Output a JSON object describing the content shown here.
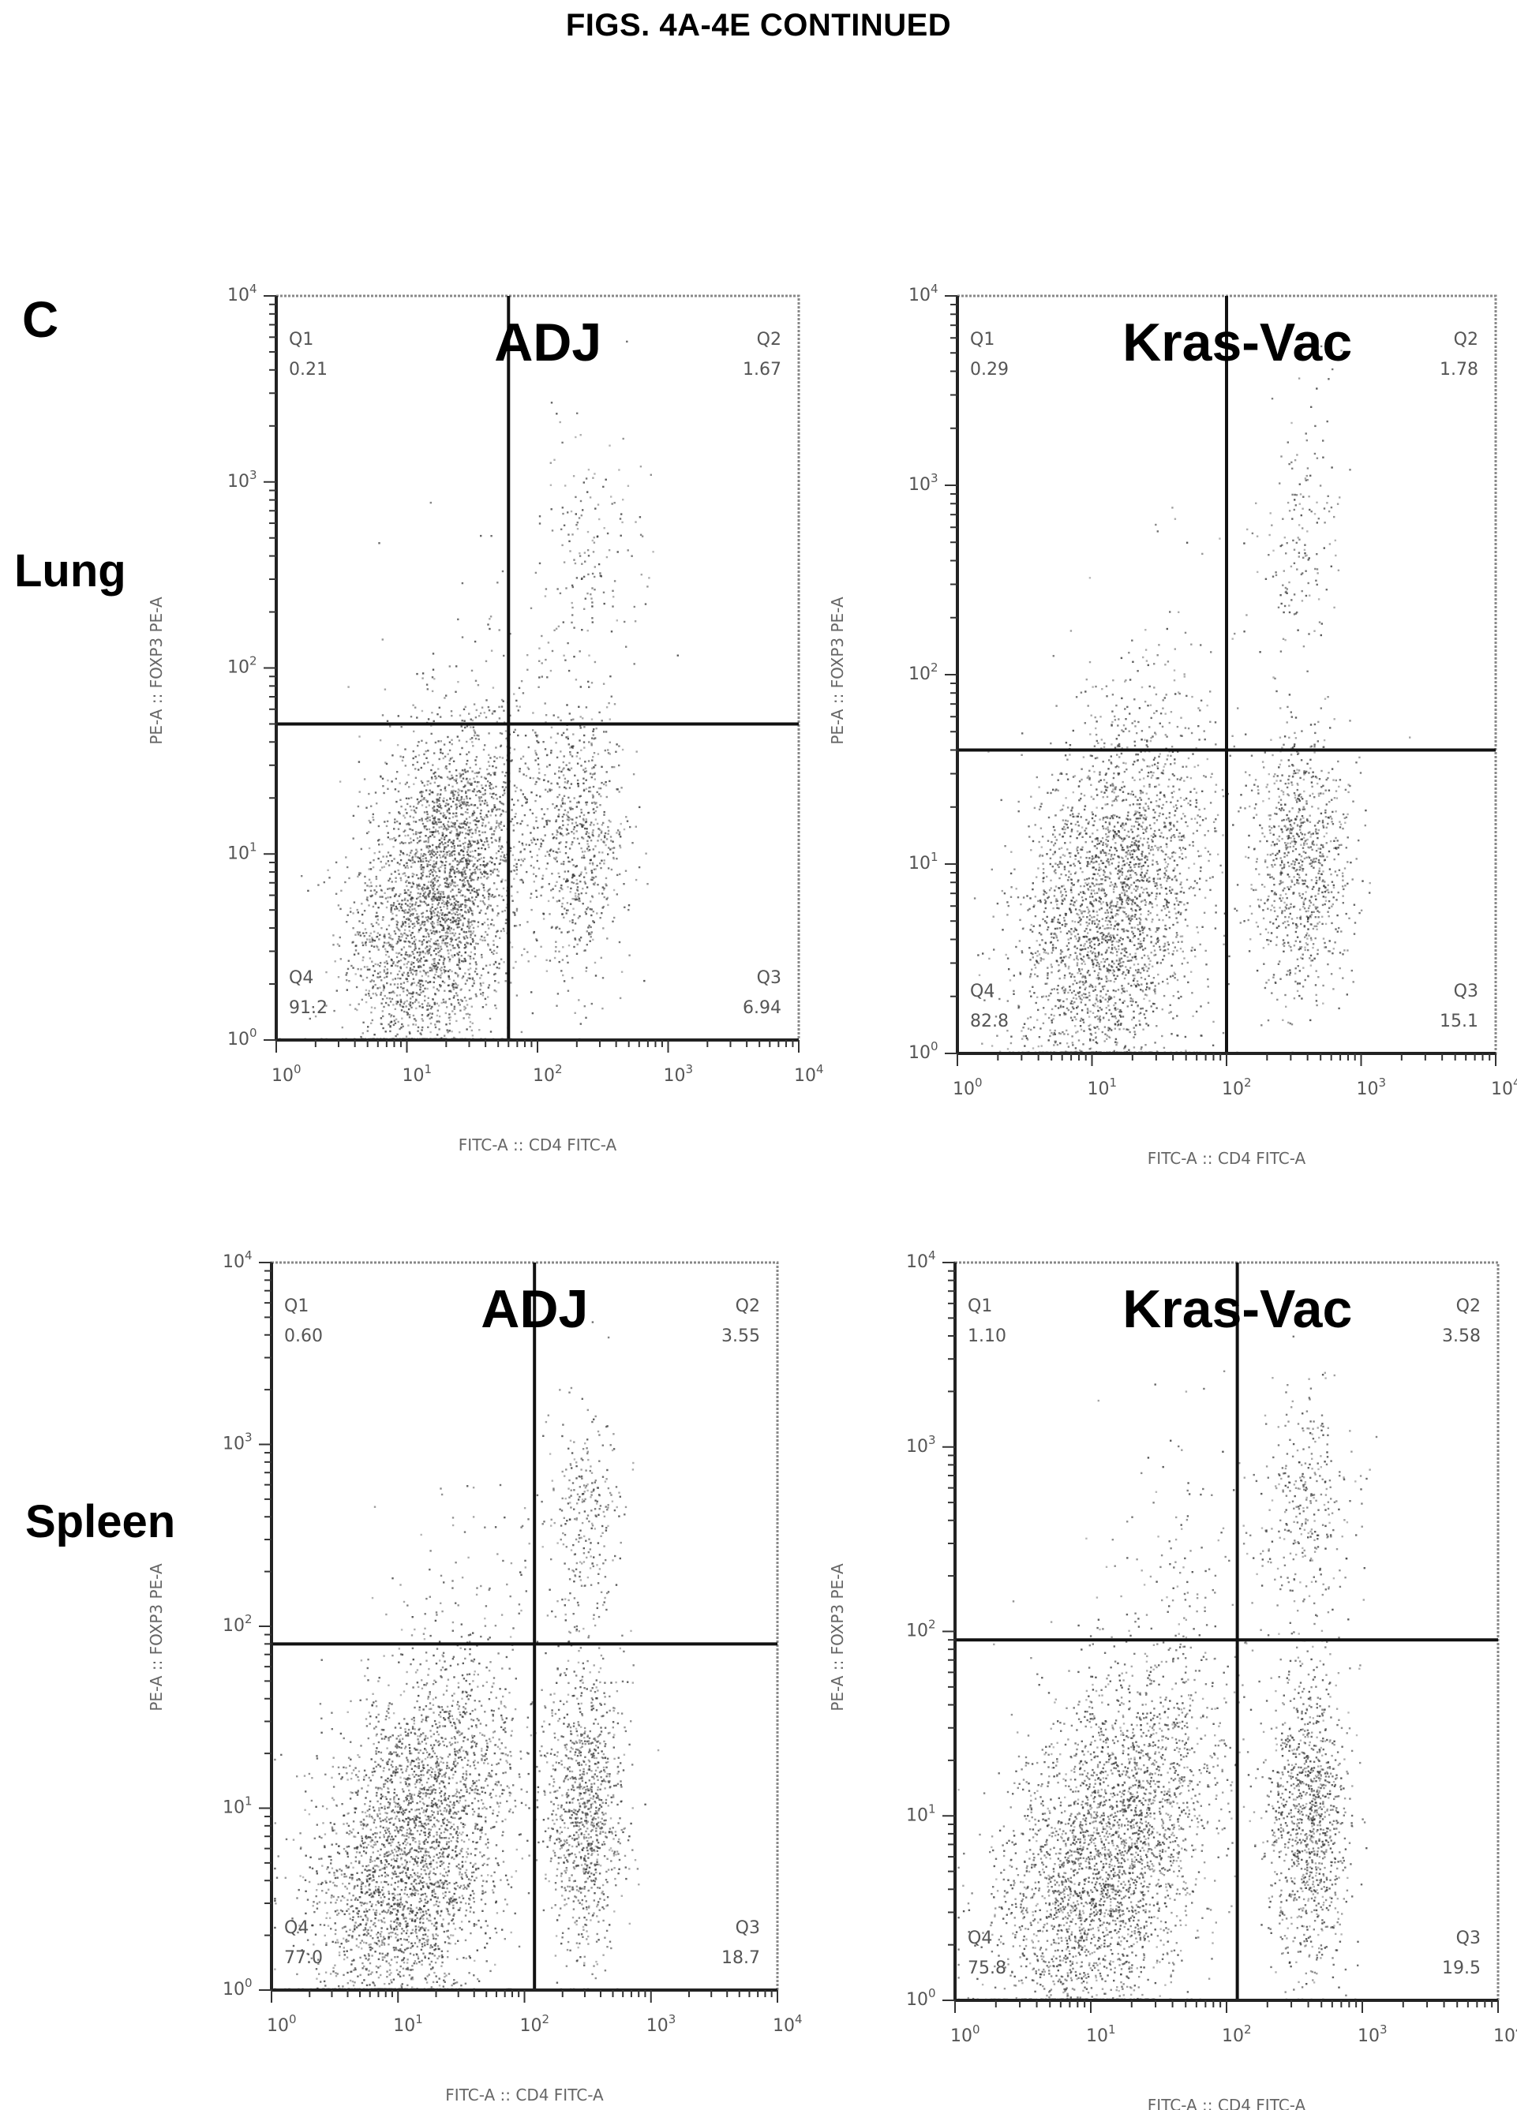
{
  "figure": {
    "title": "FIGS. 4A-4E CONTINUED",
    "panel_letter": "C",
    "rows": [
      {
        "label": "Lung"
      },
      {
        "label": "Spleen"
      }
    ]
  },
  "chart_data": [
    {
      "type": "scatter",
      "row": "Lung",
      "title": "ADJ",
      "xlabel": "FITC-A :: CD4 FITC-A",
      "ylabel": "PE-A :: FOXP3 PE-A",
      "x_scale": "log",
      "y_scale": "log",
      "xlim": [
        1,
        10000
      ],
      "ylim": [
        1,
        10000
      ],
      "x_ticks": [
        "10^0",
        "10^1",
        "10^2",
        "10^3",
        "10^4"
      ],
      "y_ticks": [
        "10^0",
        "10^1",
        "10^2",
        "10^3",
        "10^4"
      ],
      "gate": {
        "x": 60,
        "y": 50
      },
      "quadrants": [
        {
          "name": "Q1",
          "value": "0.21",
          "position": "top-left"
        },
        {
          "name": "Q2",
          "value": "1.67",
          "position": "top-right"
        },
        {
          "name": "Q3",
          "value": "6.94",
          "position": "bottom-right"
        },
        {
          "name": "Q4",
          "value": "91.2",
          "position": "bottom-left"
        }
      ],
      "populations": [
        {
          "x": 20,
          "y": 8,
          "sx": 0.32,
          "sy": 0.42,
          "count": 2600
        },
        {
          "x": 12,
          "y": 2.5,
          "sx": 0.3,
          "sy": 0.3,
          "count": 600
        },
        {
          "x": 200,
          "y": 12,
          "sx": 0.18,
          "sy": 0.35,
          "count": 700
        },
        {
          "x": 250,
          "y": 400,
          "sx": 0.2,
          "sy": 0.35,
          "count": 160
        },
        {
          "x": 60,
          "y": 150,
          "sx": 0.5,
          "sy": 0.4,
          "count": 30
        }
      ]
    },
    {
      "type": "scatter",
      "row": "Lung",
      "title": "Kras-Vac",
      "xlabel": "FITC-A :: CD4 FITC-A",
      "ylabel": "PE-A :: FOXP3 PE-A",
      "x_scale": "log",
      "y_scale": "log",
      "xlim": [
        1,
        10000
      ],
      "ylim": [
        1,
        10000
      ],
      "x_ticks": [
        "10^0",
        "10^1",
        "10^2",
        "10^3",
        "10^4"
      ],
      "y_ticks": [
        "10^0",
        "10^1",
        "10^2",
        "10^3",
        "10^4"
      ],
      "gate": {
        "x": 100,
        "y": 40
      },
      "quadrants": [
        {
          "name": "Q1",
          "value": "0.29",
          "position": "top-left"
        },
        {
          "name": "Q2",
          "value": "1.78",
          "position": "top-right"
        },
        {
          "name": "Q3",
          "value": "15.1",
          "position": "bottom-right"
        },
        {
          "name": "Q4",
          "value": "82.8",
          "position": "bottom-left"
        }
      ],
      "populations": [
        {
          "x": 15,
          "y": 8,
          "sx": 0.35,
          "sy": 0.45,
          "count": 2300
        },
        {
          "x": 12,
          "y": 2.5,
          "sx": 0.3,
          "sy": 0.3,
          "count": 500
        },
        {
          "x": 350,
          "y": 10,
          "sx": 0.18,
          "sy": 0.35,
          "count": 900
        },
        {
          "x": 350,
          "y": 500,
          "sx": 0.15,
          "sy": 0.35,
          "count": 160
        },
        {
          "x": 80,
          "y": 150,
          "sx": 0.5,
          "sy": 0.4,
          "count": 25
        }
      ]
    },
    {
      "type": "scatter",
      "row": "Spleen",
      "title": "ADJ",
      "xlabel": "FITC-A :: CD4 FITC-A",
      "ylabel": "PE-A :: FOXP3 PE-A",
      "x_scale": "log",
      "y_scale": "log",
      "xlim": [
        1,
        10000
      ],
      "ylim": [
        1,
        10000
      ],
      "x_ticks": [
        "10^0",
        "10^1",
        "10^2",
        "10^3",
        "10^4"
      ],
      "y_ticks": [
        "10^0",
        "10^1",
        "10^2",
        "10^3",
        "10^4"
      ],
      "gate": {
        "x": 120,
        "y": 80
      },
      "quadrants": [
        {
          "name": "Q1",
          "value": "0.60",
          "position": "top-left"
        },
        {
          "name": "Q2",
          "value": "3.55",
          "position": "top-right"
        },
        {
          "name": "Q3",
          "value": "18.7",
          "position": "bottom-right"
        },
        {
          "name": "Q4",
          "value": "77.0",
          "position": "bottom-left"
        }
      ],
      "populations": [
        {
          "x": 15,
          "y": 8,
          "sx": 0.38,
          "sy": 0.45,
          "count": 2600
        },
        {
          "x": 8,
          "y": 2.5,
          "sx": 0.35,
          "sy": 0.3,
          "count": 600
        },
        {
          "x": 300,
          "y": 10,
          "sx": 0.15,
          "sy": 0.4,
          "count": 1000
        },
        {
          "x": 300,
          "y": 400,
          "sx": 0.15,
          "sy": 0.3,
          "count": 260
        },
        {
          "x": 60,
          "y": 200,
          "sx": 0.4,
          "sy": 0.35,
          "count": 80
        }
      ]
    },
    {
      "type": "scatter",
      "row": "Spleen",
      "title": "Kras-Vac",
      "xlabel": "FITC-A :: CD4 FITC-A",
      "ylabel": "PE-A :: FOXP3 PE-A",
      "x_scale": "log",
      "y_scale": "log",
      "xlim": [
        1,
        10000
      ],
      "ylim": [
        1,
        10000
      ],
      "x_ticks": [
        "10^0",
        "10^1",
        "10^2",
        "10^3",
        "10^4"
      ],
      "y_ticks": [
        "10^0",
        "10^1",
        "10^2",
        "10^3",
        "10^4"
      ],
      "gate": {
        "x": 120,
        "y": 90
      },
      "quadrants": [
        {
          "name": "Q1",
          "value": "1.10",
          "position": "top-left"
        },
        {
          "name": "Q2",
          "value": "3.58",
          "position": "top-right"
        },
        {
          "name": "Q3",
          "value": "19.5",
          "position": "bottom-right"
        },
        {
          "name": "Q4",
          "value": "75.8",
          "position": "bottom-left"
        }
      ],
      "populations": [
        {
          "x": 15,
          "y": 8,
          "sx": 0.38,
          "sy": 0.45,
          "count": 2600
        },
        {
          "x": 8,
          "y": 2.5,
          "sx": 0.35,
          "sy": 0.3,
          "count": 600
        },
        {
          "x": 400,
          "y": 10,
          "sx": 0.15,
          "sy": 0.4,
          "count": 1100
        },
        {
          "x": 400,
          "y": 500,
          "sx": 0.15,
          "sy": 0.3,
          "count": 300
        },
        {
          "x": 60,
          "y": 300,
          "sx": 0.45,
          "sy": 0.4,
          "count": 110
        }
      ]
    }
  ]
}
